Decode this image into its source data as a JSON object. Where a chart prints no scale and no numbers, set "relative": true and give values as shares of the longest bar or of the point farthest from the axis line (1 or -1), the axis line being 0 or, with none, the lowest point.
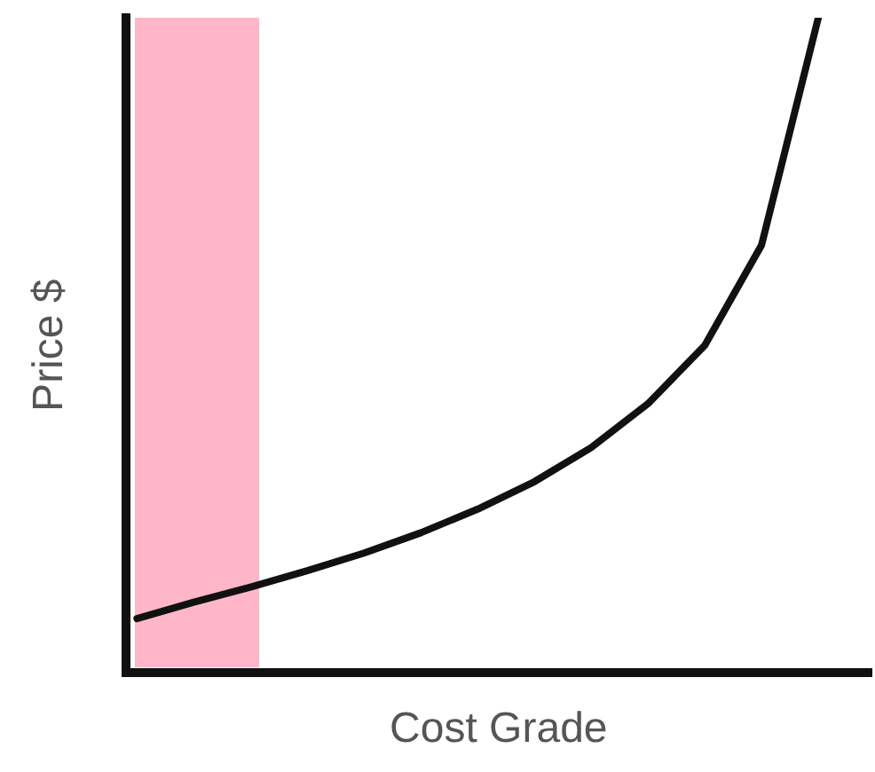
{
  "chart_data": {
    "type": "line",
    "relative": true,
    "xlabel": "Cost Grade",
    "ylabel": "Price $",
    "grid": false,
    "legend": false,
    "marker": "none",
    "line_style": "solid",
    "categories": [
      null,
      null,
      null,
      null,
      null,
      null,
      null,
      null,
      null,
      null,
      null,
      null,
      null
    ],
    "series": [
      {
        "color": "#111111",
        "values": [
          0.083,
          0.108,
          0.131,
          0.156,
          0.183,
          0.214,
          0.25,
          0.292,
          0.344,
          0.411,
          0.5,
          0.653,
          1
        ]
      }
    ]
  }
}
